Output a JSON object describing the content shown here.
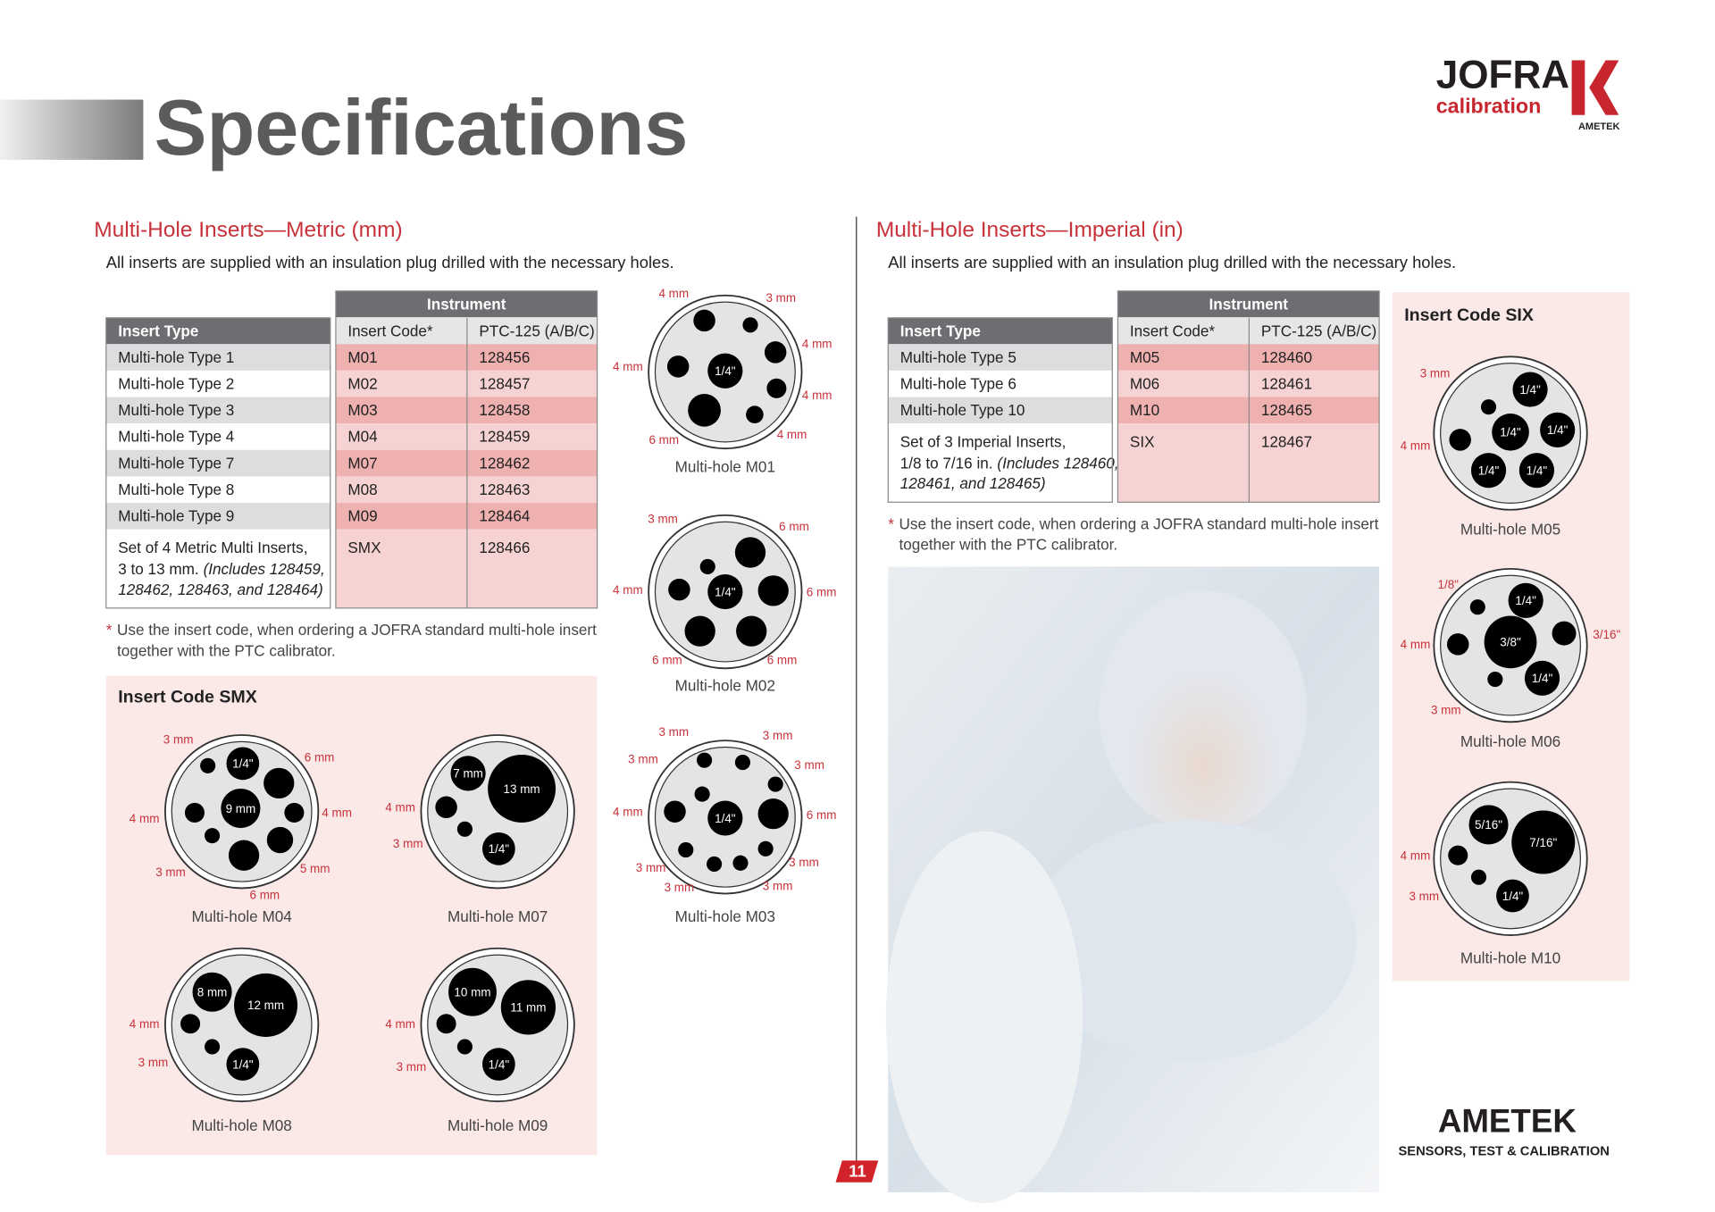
{
  "header": {
    "title": "Specifications",
    "logo": {
      "brand": "JOFRA",
      "sub": "calibration",
      "parent": "AMETEK"
    }
  },
  "metric": {
    "heading": "Multi-Hole Inserts—Metric (mm)",
    "intro": "All inserts are supplied with an insulation plug drilled with the necessary holes.",
    "table": {
      "group": "Instrument",
      "columns": [
        "Insert Type",
        "Insert Code*",
        "PTC-125 (A/B/C)"
      ],
      "rows": [
        [
          "Multi-hole Type 1",
          "M01",
          "128456"
        ],
        [
          "Multi-hole Type 2",
          "M02",
          "128457"
        ],
        [
          "Multi-hole Type 3",
          "M03",
          "128458"
        ],
        [
          "Multi-hole Type 4",
          "M04",
          "128459"
        ],
        [
          "Multi-hole Type 7",
          "M07",
          "128462"
        ],
        [
          "Multi-hole Type 8",
          "M08",
          "128463"
        ],
        [
          "Multi-hole Type 9",
          "M09",
          "128464"
        ]
      ],
      "set": {
        "lines": [
          "Set of 4 Metric Multi Inserts,",
          "3 to 13 mm.",
          "(Includes 128459,",
          "128462, 128463, and 128464)"
        ],
        "code": "SMX",
        "ptc": "128466"
      }
    },
    "footnote": {
      "mark": "*",
      "lines": [
        "Use the insert code, when ordering a JOFRA standard multi-hole insert",
        "together with the PTC calibrator."
      ]
    },
    "panel": {
      "title": "Insert Code SMX"
    }
  },
  "imperial": {
    "heading": "Multi-Hole Inserts—Imperial (in)",
    "intro": "All inserts are supplied with an insulation plug drilled with the necessary holes.",
    "table": {
      "group": "Instrument",
      "columns": [
        "Insert Type",
        "Insert Code*",
        "PTC-125 (A/B/C)"
      ],
      "rows": [
        [
          "Multi-hole Type 5",
          "M05",
          "128460"
        ],
        [
          "Multi-hole Type 6",
          "M06",
          "128461"
        ],
        [
          "Multi-hole Type 10",
          "M10",
          "128465"
        ]
      ],
      "set": {
        "lines": [
          "Set of 3 Imperial Inserts,",
          "1/8 to 7/16 in.",
          "(Includes 128460,",
          "128461, and 128465)"
        ],
        "code": "SIX",
        "ptc": "128467"
      }
    },
    "footnote": {
      "mark": "*",
      "lines": [
        "Use the insert code, when ordering a JOFRA standard multi-hole insert",
        "together with the PTC calibrator."
      ]
    },
    "panel": {
      "title": "Insert Code SIX"
    }
  },
  "diagrams": [
    {
      "caption": "Multi-hole M01",
      "hole_labels": [
        "1/4\""
      ],
      "dims": [
        "4 mm",
        "3 mm",
        "4 mm",
        "4 mm",
        "4 mm",
        "4 mm",
        "6 mm"
      ]
    },
    {
      "caption": "Multi-hole M02",
      "hole_labels": [
        "1/4\""
      ],
      "dims": [
        "3 mm",
        "6 mm",
        "4 mm",
        "6 mm",
        "6 mm",
        "6 mm"
      ]
    },
    {
      "caption": "Multi-hole M03",
      "hole_labels": [
        "1/4\""
      ],
      "dims": [
        "3 mm",
        "3 mm",
        "3 mm",
        "3 mm",
        "4 mm",
        "6 mm",
        "3 mm",
        "3 mm",
        "3 mm",
        "3 mm"
      ]
    },
    {
      "caption": "Multi-hole M04",
      "hole_labels": [
        "1/4\"",
        "9 mm"
      ],
      "dims": [
        "3 mm",
        "6 mm",
        "4 mm",
        "4 mm",
        "3 mm",
        "5 mm",
        "6 mm"
      ]
    },
    {
      "caption": "Multi-hole M07",
      "hole_labels": [
        "7 mm",
        "13 mm",
        "1/4\""
      ],
      "dims": [
        "4 mm",
        "3 mm"
      ]
    },
    {
      "caption": "Multi-hole M08",
      "hole_labels": [
        "8 mm",
        "12 mm",
        "1/4\""
      ],
      "dims": [
        "4 mm",
        "3 mm"
      ]
    },
    {
      "caption": "Multi-hole M09",
      "hole_labels": [
        "10 mm",
        "11 mm",
        "1/4\""
      ],
      "dims": [
        "4 mm",
        "3 mm"
      ]
    },
    {
      "caption": "Multi-hole M05",
      "hole_labels": [
        "1/4\"",
        "1/4\"",
        "1/4\"",
        "1/4\"",
        "1/4\""
      ],
      "dims": [
        "3 mm",
        "4 mm"
      ]
    },
    {
      "caption": "Multi-hole M06",
      "hole_labels": [
        "1/4\"",
        "3/8\"",
        "1/4\""
      ],
      "dims": [
        "1/8\"",
        "3/16\"",
        "4 mm",
        "3 mm"
      ]
    },
    {
      "caption": "Multi-hole M10",
      "hole_labels": [
        "5/16\"",
        "7/16\"",
        "1/4\""
      ],
      "dims": [
        "4 mm",
        "3 mm"
      ]
    }
  ],
  "page_number": "11",
  "footer": {
    "brand": "AMETEK",
    "tagline": "SENSORS, TEST & CALIBRATION"
  }
}
